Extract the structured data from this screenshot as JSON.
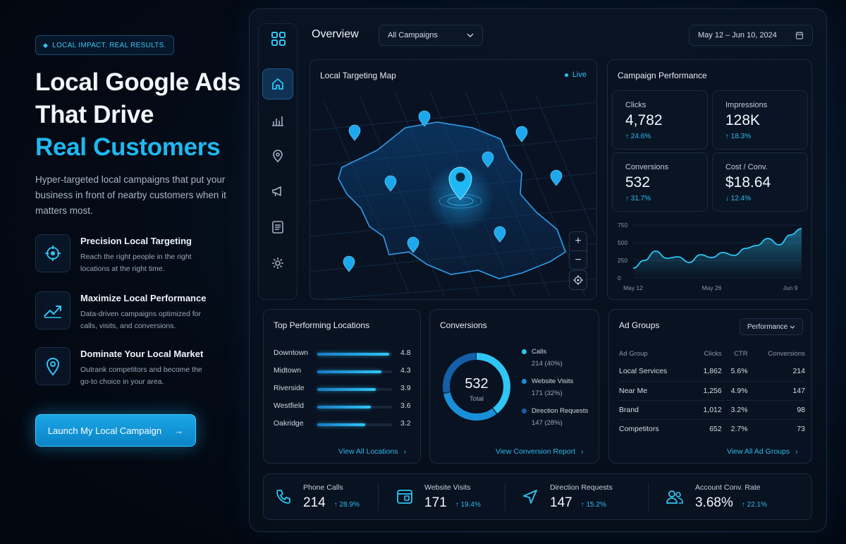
{
  "hero": {
    "badge": "LOCAL IMPACT. REAL RESULTS.",
    "title_line1": "Local Google Ads",
    "title_line2": "That Drive",
    "title_accent": "Real Customers",
    "subtitle": "Hyper-targeted local campaigns that put your business in front of nearby customers when it matters most.",
    "features": [
      {
        "icon": "crosshair-icon",
        "title": "Precision Local Targeting",
        "desc": "Reach the right people in the right locations at the right time."
      },
      {
        "icon": "trend-up-icon",
        "title": "Maximize Local Performance",
        "desc": "Data-driven campaigns optimized for calls, visits, and conversions."
      },
      {
        "icon": "map-pin-icon",
        "title": "Dominate Your Local Market",
        "desc": "Outrank competitors and become the go-to choice in your area."
      }
    ],
    "cta": "Launch My Local Campaign"
  },
  "topbar": {
    "title": "Overview",
    "campaign_select": "All Campaigns",
    "date_range": "May 12 – Jun 10, 2024"
  },
  "map": {
    "title": "Local Targeting Map",
    "live": "Live",
    "zoom_in": "+",
    "zoom_out": "−"
  },
  "campaign_performance": {
    "title": "Campaign Performance",
    "kpis": [
      {
        "label": "Clicks",
        "value": "4,782",
        "change": "↑ 24.6%"
      },
      {
        "label": "Impressions",
        "value": "128K",
        "change": "↑ 18.3%"
      },
      {
        "label": "Conversions",
        "value": "532",
        "change": "↑ 31.7%"
      },
      {
        "label": "Cost / Conv.",
        "value": "$18.64",
        "change": "↓ 12.4%"
      }
    ]
  },
  "chart_data": {
    "type": "area",
    "x": [
      "May 12",
      "May 14",
      "May 16",
      "May 18",
      "May 20",
      "May 22",
      "May 24",
      "May 26",
      "May 28",
      "May 30",
      "Jun 1",
      "Jun 3",
      "Jun 5",
      "Jun 7",
      "Jun 9",
      "Jun 10"
    ],
    "values": [
      140,
      250,
      380,
      280,
      300,
      220,
      330,
      290,
      360,
      320,
      420,
      460,
      560,
      470,
      610,
      700
    ],
    "yticks": [
      "750",
      "500",
      "250",
      "0"
    ],
    "xticks": [
      "May 12",
      "May 26",
      "Jun 9"
    ],
    "ylim": [
      0,
      750
    ],
    "color": "#2fc6f5"
  },
  "top_locations": {
    "title": "Top Performing Locations",
    "rows": [
      {
        "name": "Downtown",
        "value": "4.8",
        "score": 4.8
      },
      {
        "name": "Midtown",
        "value": "4.3",
        "score": 4.3
      },
      {
        "name": "Riverside",
        "value": "3.9",
        "score": 3.9
      },
      {
        "name": "Westfield",
        "value": "3.6",
        "score": 3.6
      },
      {
        "name": "Oakridge",
        "value": "3.2",
        "score": 3.2
      }
    ],
    "link": "View All Locations"
  },
  "conversions": {
    "title": "Conversions",
    "total": "532",
    "total_label": "Total",
    "segments": [
      {
        "label": "Calls",
        "detail": "214 (40%)",
        "share": 40,
        "color": "#2fc6f5"
      },
      {
        "label": "Website Visits",
        "detail": "171 (32%)",
        "share": 32,
        "color": "#1a8fd9"
      },
      {
        "label": "Direction Requests",
        "detail": "147 (28%)",
        "share": 28,
        "color": "#145fa8"
      }
    ],
    "link": "View Conversion Report"
  },
  "ad_groups": {
    "title": "Ad Groups",
    "filter": "Performance",
    "columns": [
      "Ad Group",
      "Clicks",
      "CTR",
      "Conversions"
    ],
    "rows": [
      [
        "Local Services",
        "1,862",
        "5.6%",
        "214"
      ],
      [
        "Near Me",
        "1,256",
        "4.9%",
        "147"
      ],
      [
        "Brand",
        "1,012",
        "3.2%",
        "98"
      ],
      [
        "Competitors",
        "652",
        "2.7%",
        "73"
      ]
    ],
    "link": "View All Ad Groups"
  },
  "bottom_stats": [
    {
      "icon": "phone-icon",
      "label": "Phone Calls",
      "value": "214",
      "change": "↑ 28.9%"
    },
    {
      "icon": "browser-icon",
      "label": "Website Visits",
      "value": "171",
      "change": "↑ 19.4%"
    },
    {
      "icon": "navigation-icon",
      "label": "Direction Requests",
      "value": "147",
      "change": "↑ 15.2%"
    },
    {
      "icon": "users-icon",
      "label": "Account Conv. Rate",
      "value": "3.68%",
      "change": "↑ 22.1%"
    }
  ]
}
